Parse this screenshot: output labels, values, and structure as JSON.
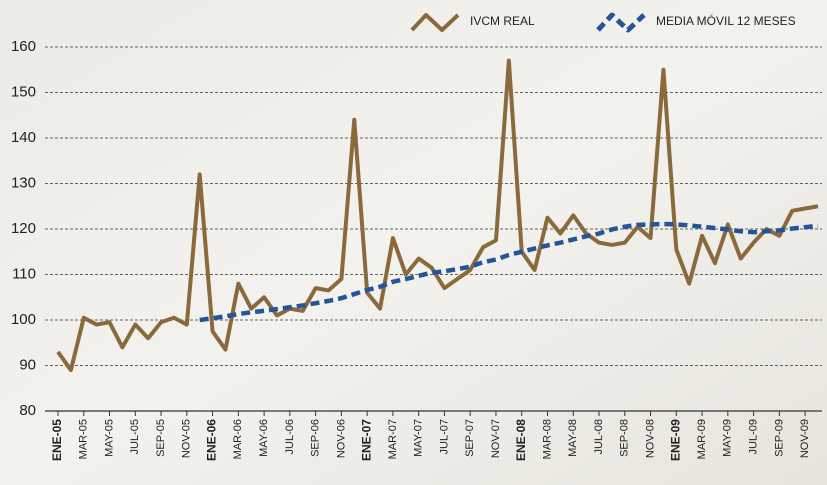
{
  "chart_data": {
    "type": "line",
    "categories": [
      "ENE-05",
      null,
      "MAR-05",
      null,
      "MAY-05",
      null,
      "JUL-05",
      null,
      "SEP-05",
      null,
      "NOV-05",
      null,
      "ENE-06",
      null,
      "MAR-06",
      null,
      "MAY-06",
      null,
      "JUL-06",
      null,
      "SEP-06",
      null,
      "NOV-06",
      null,
      "ENE-07",
      null,
      "MAR-07",
      null,
      "MAY-07",
      null,
      "JUL-07",
      null,
      "SEP-07",
      null,
      "NOV-07",
      null,
      "ENE-08",
      null,
      "MAR-08",
      null,
      "MAY-08",
      null,
      "JUL-08",
      null,
      "SEP-08",
      null,
      "NOV-08",
      null,
      "ENE-09",
      null,
      "MAR-09",
      null,
      "MAY-09",
      null,
      "JUL-09",
      null,
      "SEP-09",
      null,
      "NOV-09",
      null
    ],
    "series": [
      {
        "name": "IVCM REAL",
        "color": "#8a6a3c",
        "style": "solid",
        "values": [
          93,
          89,
          100.5,
          99,
          99.5,
          94,
          99,
          96,
          99.5,
          100.5,
          99,
          132,
          97.5,
          93.5,
          108,
          102.5,
          105,
          101,
          102.5,
          102,
          107,
          106.5,
          109,
          144,
          106,
          102.5,
          118,
          110,
          113.5,
          111.5,
          107,
          109,
          111,
          116,
          117.5,
          157,
          115,
          111,
          122.5,
          119,
          123,
          119,
          117,
          116.5,
          117,
          120.5,
          118,
          155,
          115.5,
          108,
          118.5,
          112.5,
          121,
          113.5,
          117,
          120,
          118.5,
          124,
          124.5,
          125
        ]
      },
      {
        "name": "MEDIA MÓVIL 12 MESES",
        "color": "#245597",
        "style": "dashed",
        "values": [
          null,
          null,
          null,
          null,
          null,
          null,
          null,
          null,
          null,
          null,
          null,
          100,
          100.4,
          100.8,
          101.3,
          101.7,
          102,
          102.4,
          102.8,
          103.2,
          103.7,
          104.2,
          104.8,
          105.7,
          106.6,
          107.3,
          108.4,
          109,
          109.7,
          110.4,
          110.7,
          111.2,
          111.7,
          112.7,
          113.3,
          114.3,
          115,
          115.7,
          116.4,
          117,
          117.7,
          118.4,
          119,
          119.9,
          120.5,
          120.9,
          121,
          121.1,
          121,
          120.8,
          120.5,
          120.2,
          119.9,
          119.5,
          119.3,
          119.5,
          119.7,
          120.1,
          120.4,
          120.7
        ]
      }
    ],
    "ylim": [
      80,
      160
    ],
    "yticks": [
      80,
      90,
      100,
      110,
      120,
      130,
      140,
      150,
      160
    ],
    "grid": true
  }
}
